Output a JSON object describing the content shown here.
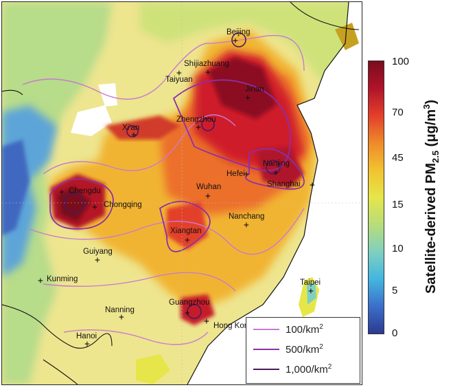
{
  "map": {
    "cities": [
      {
        "name": "Beijing"
      },
      {
        "name": "Shijiazhuang"
      },
      {
        "name": "Taiyuan"
      },
      {
        "name": "Jinan"
      },
      {
        "name": "Zhengzhou"
      },
      {
        "name": "Xi'an"
      },
      {
        "name": "Nanjing"
      },
      {
        "name": "Hefei"
      },
      {
        "name": "Shanghai"
      },
      {
        "name": "Wuhan"
      },
      {
        "name": "Chengdu"
      },
      {
        "name": "Chongqing"
      },
      {
        "name": "Nanchang"
      },
      {
        "name": "Xiangtan"
      },
      {
        "name": "Guiyang"
      },
      {
        "name": "Kunming"
      },
      {
        "name": "Taipei"
      },
      {
        "name": "Nanning"
      },
      {
        "name": "Guangzhou"
      },
      {
        "name": "Hong Kong"
      },
      {
        "name": "Hanoi"
      }
    ],
    "marker_symbol": "+"
  },
  "legend": {
    "items": [
      {
        "label": "100/km",
        "sup": "2",
        "color": "#c77ad1"
      },
      {
        "label": "500/km",
        "sup": "2",
        "color": "#8b2fa8"
      },
      {
        "label": "1,000/km",
        "sup": "2",
        "color": "#4b1a5c"
      }
    ]
  },
  "colorbar": {
    "title_main": "Satellite-derived PM",
    "title_sub": "2.5",
    "title_units_pre": " (μg/m",
    "title_units_sup": "3",
    "title_units_post": ")",
    "ticks": [
      "100",
      "70",
      "45",
      "15",
      "10",
      "5",
      "0"
    ],
    "colors": [
      "#2b3a8f",
      "#3b6fc9",
      "#43b6e0",
      "#7fd0c0",
      "#b8dc7a",
      "#e6e64a",
      "#f2c230",
      "#ee8a2a",
      "#e3402a",
      "#b0142a",
      "#7a0c1e"
    ]
  }
}
